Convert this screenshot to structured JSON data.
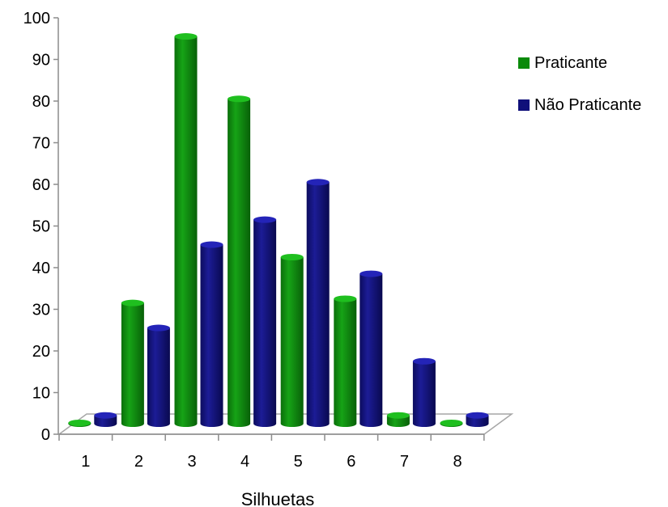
{
  "chart_data": {
    "type": "bar",
    "style": "3d-cylinder",
    "title": "",
    "xlabel": "Silhuetas",
    "ylabel": "",
    "categories": [
      "1",
      "2",
      "3",
      "4",
      "5",
      "6",
      "7",
      "8"
    ],
    "ylim": [
      0,
      100
    ],
    "yticks": [
      "0",
      "10",
      "20",
      "30",
      "40",
      "50",
      "60",
      "70",
      "80",
      "90",
      "100"
    ],
    "legend_position": "right",
    "series": [
      {
        "name": "Praticante",
        "color": "#0a8a0a",
        "values": [
          0,
          29,
          93,
          78,
          40,
          30,
          2,
          0
        ]
      },
      {
        "name": "Não Praticante",
        "color": "#10107a",
        "values": [
          2,
          23,
          43,
          49,
          58,
          36,
          15,
          2
        ]
      }
    ]
  }
}
